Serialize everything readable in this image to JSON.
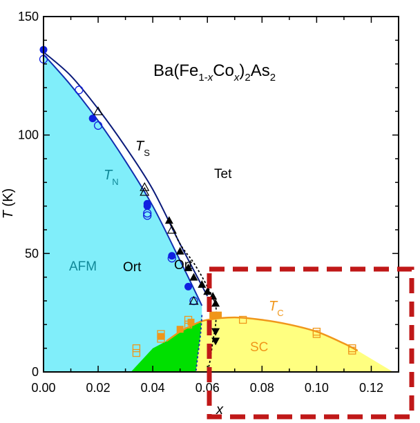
{
  "chart_data": {
    "type": "scatter",
    "title": {
      "prefix": "Ba(Fe",
      "sub1": "1-",
      "sub1_italic": "x",
      "mid": "Co",
      "sub2_italic": "x",
      "close": ")",
      "sub3": "2",
      "tail": "As",
      "sub4": "2"
    },
    "xlabel": "x",
    "ylabel_italic": "T",
    "ylabel_rest": " (K)",
    "xlim": [
      0.0,
      0.13
    ],
    "ylim": [
      0,
      150
    ],
    "x_ticks": [
      0.0,
      0.02,
      0.04,
      0.06,
      0.08,
      0.1,
      0.12
    ],
    "x_tick_labels": [
      "0.00",
      "0.02",
      "0.04",
      "0.06",
      "0.08",
      "0.10",
      "0.12"
    ],
    "y_ticks": [
      0,
      50,
      100,
      150
    ],
    "y_tick_labels": [
      "0",
      "50",
      "100",
      "150"
    ],
    "region_labels": {
      "afm": "AFM",
      "ort_left": "Ort",
      "ort_right": "Ort",
      "tet": "Tet",
      "sc": "SC"
    },
    "curve_labels": {
      "ts_main": "T",
      "ts_sub": "S",
      "tn_main": "T",
      "tn_sub": "N",
      "tc_main": "T",
      "tc_sub": "C"
    },
    "colors": {
      "afm_region": "#80eefa",
      "sc_afm_region": "#00e000",
      "sc_region": "#ffff80",
      "ts_line": "#0a1a7a",
      "tn_line": "#1030b0",
      "tc_line": "#f0961a",
      "tn_marker": "#1020e0",
      "square_marker": "#f0961a",
      "afm_label": "#108898",
      "sc_label": "#f0961a",
      "tn_label": "#108898",
      "tc_label": "#f0961a",
      "highlight_box": "#c01818"
    },
    "curves": {
      "T_S": [
        [
          0.0,
          135
        ],
        [
          0.01,
          125
        ],
        [
          0.02,
          111
        ],
        [
          0.03,
          95
        ],
        [
          0.04,
          77
        ],
        [
          0.05,
          54
        ],
        [
          0.06,
          32
        ]
      ],
      "T_N": [
        [
          0.0,
          134
        ],
        [
          0.01,
          121
        ],
        [
          0.02,
          106
        ],
        [
          0.03,
          89
        ],
        [
          0.04,
          70
        ],
        [
          0.05,
          47
        ],
        [
          0.058,
          28
        ]
      ],
      "T_C": [
        [
          0.045,
          13
        ],
        [
          0.05,
          17
        ],
        [
          0.055,
          20
        ],
        [
          0.06,
          22
        ],
        [
          0.07,
          23
        ],
        [
          0.08,
          22
        ],
        [
          0.09,
          20
        ],
        [
          0.1,
          17
        ],
        [
          0.11,
          12
        ],
        [
          0.115,
          9
        ]
      ],
      "T_S_dashed": [
        [
          0.046,
          64
        ],
        [
          0.05,
          54
        ],
        [
          0.055,
          46
        ],
        [
          0.06,
          36
        ],
        [
          0.063,
          28
        ],
        [
          0.063,
          20
        ],
        [
          0.062,
          13
        ],
        [
          0.061,
          5
        ],
        [
          0.06,
          0
        ]
      ],
      "T_N_dashed": [
        [
          0.058,
          24
        ],
        [
          0.0575,
          16
        ],
        [
          0.0565,
          7
        ],
        [
          0.0558,
          0
        ]
      ]
    },
    "series": [
      {
        "marker": "circle-filled",
        "points": [
          [
            0.0,
            136
          ],
          [
            0.018,
            107
          ],
          [
            0.038,
            71
          ],
          [
            0.038,
            70
          ],
          [
            0.047,
            49
          ],
          [
            0.053,
            36
          ]
        ]
      },
      {
        "marker": "circle-open",
        "points": [
          [
            0.0,
            132
          ],
          [
            0.013,
            119
          ],
          [
            0.02,
            104
          ],
          [
            0.038,
            67
          ],
          [
            0.038,
            66
          ],
          [
            0.047,
            48
          ],
          [
            0.055,
            30
          ]
        ]
      },
      {
        "marker": "triangle-up-open",
        "points": [
          [
            0.02,
            110
          ],
          [
            0.037,
            78
          ],
          [
            0.037,
            76
          ],
          [
            0.047,
            60
          ],
          [
            0.055,
            30
          ]
        ]
      },
      {
        "marker": "triangle-up-filled",
        "points": [
          [
            0.046,
            64
          ],
          [
            0.05,
            51
          ],
          [
            0.053,
            44
          ],
          [
            0.055,
            40
          ],
          [
            0.058,
            37
          ],
          [
            0.06,
            34
          ],
          [
            0.062,
            32
          ],
          [
            0.063,
            29
          ]
        ]
      },
      {
        "marker": "triangle-down-filled",
        "points": [
          [
            0.063,
            17
          ],
          [
            0.063,
            13
          ]
        ]
      },
      {
        "marker": "square-open",
        "points": [
          [
            0.034,
            10
          ],
          [
            0.034,
            8
          ],
          [
            0.043,
            16
          ],
          [
            0.043,
            14
          ],
          [
            0.053,
            20
          ],
          [
            0.053,
            22
          ],
          [
            0.073,
            22
          ],
          [
            0.1,
            16
          ],
          [
            0.1,
            17
          ],
          [
            0.113,
            10
          ],
          [
            0.113,
            9
          ]
        ]
      },
      {
        "marker": "square-filled",
        "points": [
          [
            0.043,
            15
          ],
          [
            0.05,
            18
          ],
          [
            0.054,
            21
          ],
          [
            0.062,
            24
          ],
          [
            0.064,
            24
          ]
        ]
      }
    ]
  }
}
